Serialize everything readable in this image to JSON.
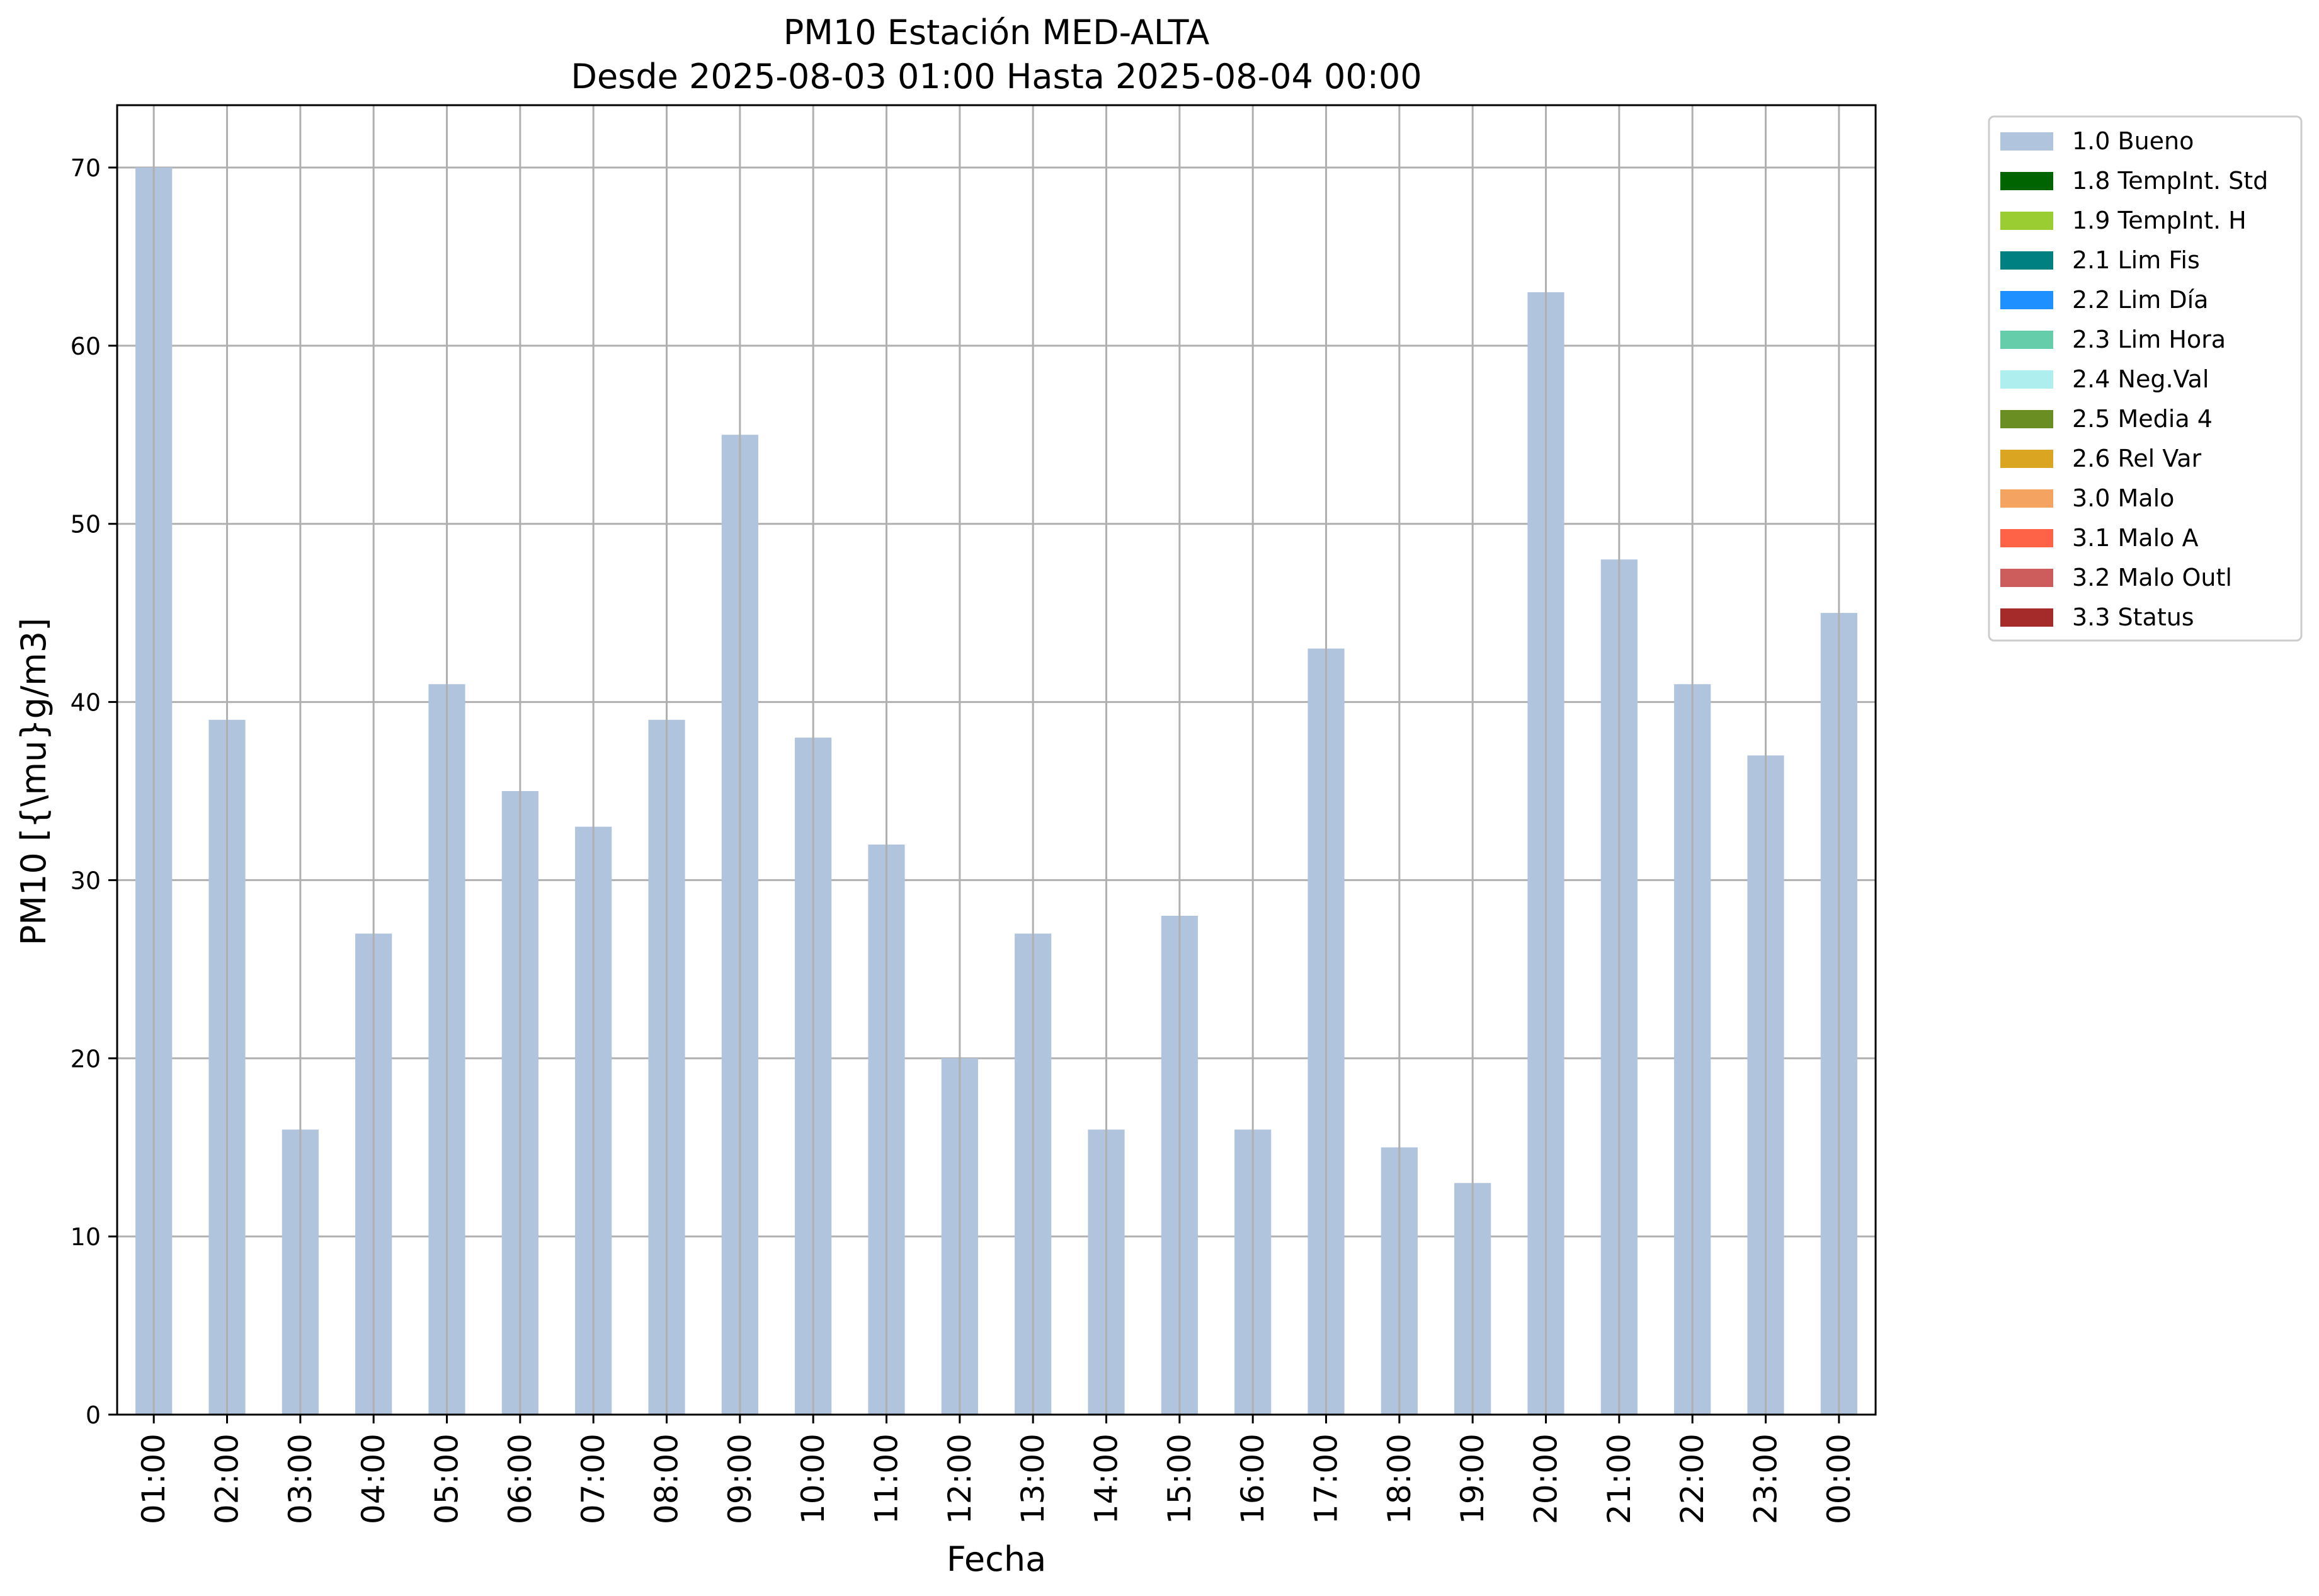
{
  "chart_data": {
    "type": "bar",
    "title": "PM10 Estación MED-ALTA",
    "subtitle": "Desde 2025-08-03 01:00 Hasta 2025-08-04 00:00",
    "xlabel": "Fecha",
    "ylabel": "PM10 [{\\mu}g/m3]",
    "ylim": [
      0,
      73.5
    ],
    "yticks": [
      0,
      10,
      20,
      30,
      40,
      50,
      60,
      70
    ],
    "grid": true,
    "legend_position": "outside-top-right",
    "categories": [
      "01:00",
      "02:00",
      "03:00",
      "04:00",
      "05:00",
      "06:00",
      "07:00",
      "08:00",
      "09:00",
      "10:00",
      "11:00",
      "12:00",
      "13:00",
      "14:00",
      "15:00",
      "16:00",
      "17:00",
      "18:00",
      "19:00",
      "20:00",
      "21:00",
      "22:00",
      "23:00",
      "00:00"
    ],
    "series": [
      {
        "name": "1.0 Bueno",
        "color": "#b0c4de",
        "values": [
          70,
          39,
          16,
          27,
          41,
          35,
          33,
          39,
          55,
          38,
          32,
          20,
          27,
          16,
          28,
          16,
          43,
          15,
          13,
          63,
          48,
          41,
          37,
          45
        ]
      }
    ],
    "legend": [
      {
        "label": "1.0 Bueno",
        "color": "#b0c4de"
      },
      {
        "label": "1.8 TempInt. Std",
        "color": "#006400"
      },
      {
        "label": "1.9 TempInt. H",
        "color": "#9acd32"
      },
      {
        "label": "2.1 Lim Fis",
        "color": "#008080"
      },
      {
        "label": "2.2 Lim Día",
        "color": "#1e90ff"
      },
      {
        "label": "2.3 Lim Hora",
        "color": "#66cdaa"
      },
      {
        "label": "2.4 Neg.Val",
        "color": "#afeeee"
      },
      {
        "label": "2.5 Media 4",
        "color": "#6b8e23"
      },
      {
        "label": "2.6 Rel Var",
        "color": "#daa520"
      },
      {
        "label": "3.0 Malo",
        "color": "#f4a460"
      },
      {
        "label": "3.1 Malo A",
        "color": "#ff6347"
      },
      {
        "label": "3.2 Malo Outl",
        "color": "#cd5c5c"
      },
      {
        "label": "3.3 Status",
        "color": "#a52a2a"
      }
    ]
  }
}
